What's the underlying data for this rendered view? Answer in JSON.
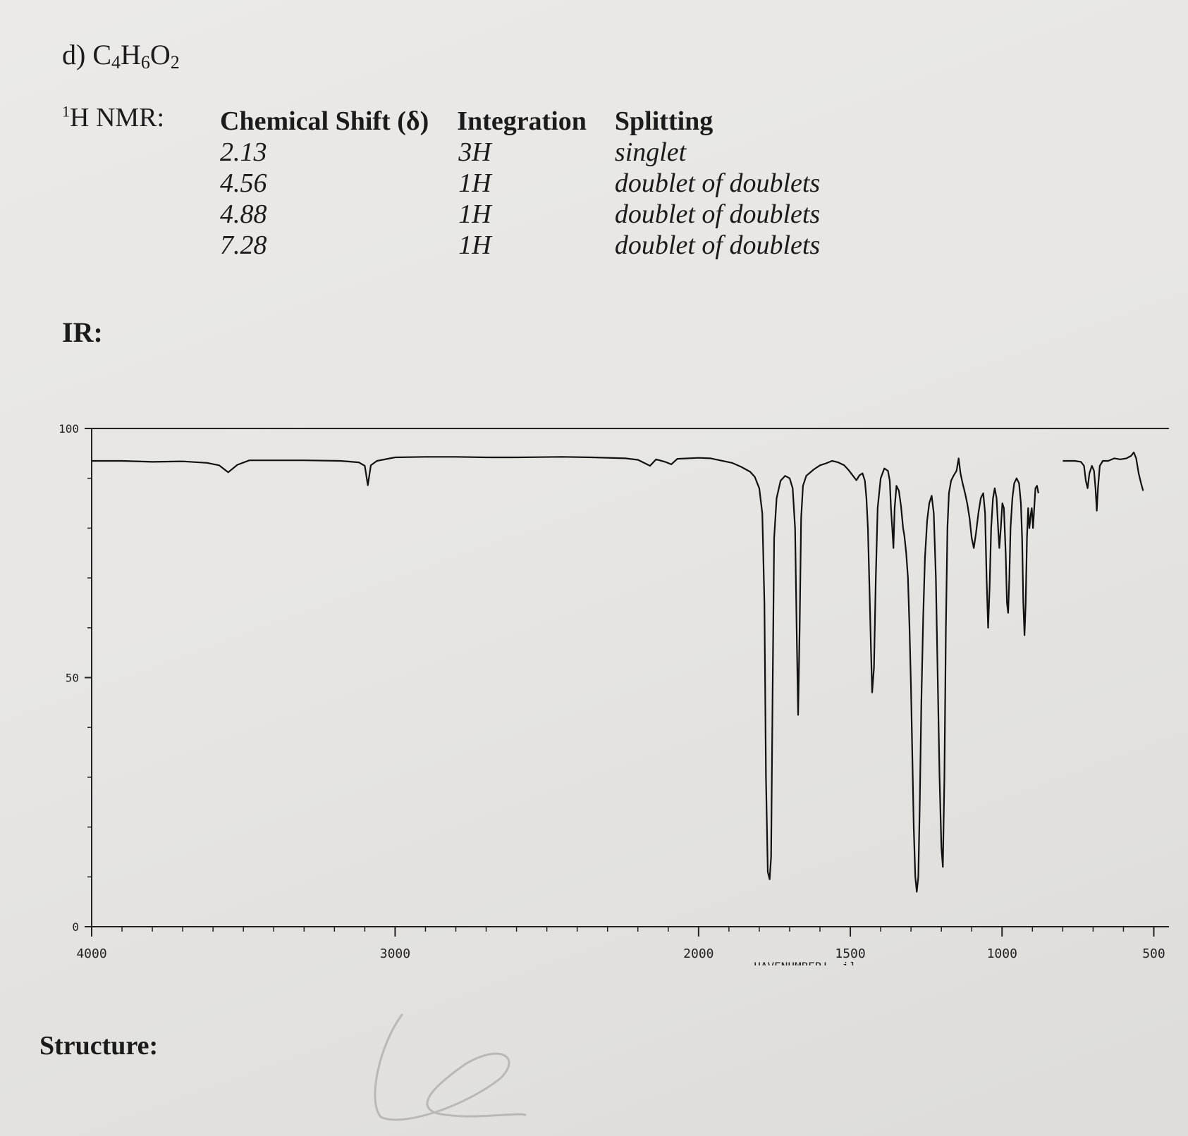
{
  "problem": {
    "label": "d)",
    "formula": [
      {
        "t": "C",
        "sub": false
      },
      {
        "t": "4",
        "sub": true
      },
      {
        "t": "H",
        "sub": false
      },
      {
        "t": "6",
        "sub": true
      },
      {
        "t": "O",
        "sub": false
      },
      {
        "t": "2",
        "sub": true
      }
    ]
  },
  "nmr": {
    "label_sup": "1",
    "label_text": "H NMR:",
    "headers": [
      "Chemical Shift (δ)",
      "Integration",
      "Splitting"
    ],
    "rows": [
      {
        "shift": "2.13",
        "integration": "3H",
        "splitting": "singlet"
      },
      {
        "shift": "4.56",
        "integration": "1H",
        "splitting": "doublet of doublets"
      },
      {
        "shift": "4.88",
        "integration": "1H",
        "splitting": "doublet of doublets"
      },
      {
        "shift": "7.28",
        "integration": "1H",
        "splitting": "doublet of doublets"
      }
    ]
  },
  "ir_label": "IR:",
  "structure_label": "Structure:",
  "chart_data": {
    "type": "line",
    "title": "",
    "xlabel": "HAVENUMBER! -i]",
    "ylabel": "",
    "xlim": [
      4000,
      450
    ],
    "ylim": [
      0,
      100
    ],
    "x_ticks": [
      4000,
      3000,
      2000,
      1500,
      1000,
      500
    ],
    "x_tick_labels": [
      "4000",
      "3000",
      "2000",
      "1500",
      "1000",
      "500"
    ],
    "y_ticks": [
      0,
      50,
      100
    ],
    "y_tick_labels": [
      "0",
      "50",
      "100"
    ],
    "grid": false,
    "series": [
      {
        "points": [
          [
            4000,
            93.5
          ],
          [
            3900,
            93.5
          ],
          [
            3800,
            93.3
          ],
          [
            3700,
            93.4
          ],
          [
            3620,
            93.1
          ],
          [
            3580,
            92.6
          ],
          [
            3550,
            91.2
          ],
          [
            3520,
            92.7
          ],
          [
            3480,
            93.6
          ],
          [
            3300,
            93.6
          ],
          [
            3180,
            93.5
          ],
          [
            3120,
            93.2
          ],
          [
            3100,
            92.5
          ],
          [
            3090,
            88.6
          ],
          [
            3080,
            92.6
          ],
          [
            3060,
            93.5
          ],
          [
            3000,
            94.2
          ],
          [
            2900,
            94.3
          ],
          [
            2800,
            94.3
          ],
          [
            2700,
            94.2
          ],
          [
            2600,
            94.2
          ],
          [
            2450,
            94.3
          ],
          [
            2350,
            94.2
          ],
          [
            2240,
            94.0
          ],
          [
            2200,
            93.7
          ],
          [
            2160,
            92.5
          ],
          [
            2140,
            93.8
          ],
          [
            2110,
            93.3
          ],
          [
            2090,
            92.8
          ],
          [
            2070,
            93.9
          ],
          [
            2000,
            94.1
          ],
          [
            1960,
            94.0
          ],
          [
            1930,
            93.6
          ],
          [
            1890,
            93.1
          ],
          [
            1860,
            92.3
          ],
          [
            1830,
            91.3
          ],
          [
            1815,
            90.3
          ],
          [
            1800,
            88.0
          ],
          [
            1790,
            83.0
          ],
          [
            1783,
            65.0
          ],
          [
            1778,
            30.0
          ],
          [
            1772,
            11.0
          ],
          [
            1766,
            9.5
          ],
          [
            1761,
            14.0
          ],
          [
            1756,
            48.0
          ],
          [
            1751,
            78.0
          ],
          [
            1743,
            86.0
          ],
          [
            1730,
            89.5
          ],
          [
            1715,
            90.5
          ],
          [
            1700,
            90.0
          ],
          [
            1690,
            88.0
          ],
          [
            1682,
            80.0
          ],
          [
            1677,
            60.0
          ],
          [
            1672,
            42.5
          ],
          [
            1667,
            60.0
          ],
          [
            1662,
            82.0
          ],
          [
            1656,
            88.5
          ],
          [
            1645,
            90.5
          ],
          [
            1620,
            91.8
          ],
          [
            1600,
            92.6
          ],
          [
            1580,
            93.0
          ],
          [
            1560,
            93.5
          ],
          [
            1540,
            93.2
          ],
          [
            1520,
            92.6
          ],
          [
            1505,
            91.6
          ],
          [
            1490,
            90.4
          ],
          [
            1480,
            89.6
          ],
          [
            1470,
            90.6
          ],
          [
            1460,
            91.0
          ],
          [
            1452,
            89.5
          ],
          [
            1447,
            86.0
          ],
          [
            1442,
            80.0
          ],
          [
            1437,
            68.0
          ],
          [
            1432,
            56.0
          ],
          [
            1428,
            47.0
          ],
          [
            1422,
            52.0
          ],
          [
            1416,
            70.0
          ],
          [
            1410,
            84.0
          ],
          [
            1400,
            90.0
          ],
          [
            1388,
            92.0
          ],
          [
            1376,
            91.5
          ],
          [
            1370,
            89.5
          ],
          [
            1366,
            84.0
          ],
          [
            1362,
            80.0
          ],
          [
            1358,
            76.0
          ],
          [
            1354,
            84.0
          ],
          [
            1348,
            88.5
          ],
          [
            1340,
            87.5
          ],
          [
            1333,
            84.5
          ],
          [
            1326,
            80.0
          ],
          [
            1322,
            78.5
          ],
          [
            1316,
            75.0
          ],
          [
            1310,
            70.0
          ],
          [
            1305,
            60.0
          ],
          [
            1300,
            48.0
          ],
          [
            1296,
            35.0
          ],
          [
            1291,
            20.0
          ],
          [
            1286,
            10.0
          ],
          [
            1281,
            7.0
          ],
          [
            1276,
            10.0
          ],
          [
            1271,
            25.0
          ],
          [
            1266,
            45.0
          ],
          [
            1260,
            62.0
          ],
          [
            1254,
            74.0
          ],
          [
            1247,
            81.5
          ],
          [
            1240,
            85.0
          ],
          [
            1232,
            86.5
          ],
          [
            1225,
            83.0
          ],
          [
            1218,
            70.0
          ],
          [
            1212,
            50.0
          ],
          [
            1206,
            30.0
          ],
          [
            1200,
            16.0
          ],
          [
            1195,
            12.0
          ],
          [
            1190,
            30.0
          ],
          [
            1185,
            60.0
          ],
          [
            1180,
            80.0
          ],
          [
            1175,
            87.0
          ],
          [
            1168,
            89.5
          ],
          [
            1160,
            90.5
          ],
          [
            1150,
            91.5
          ],
          [
            1143,
            94.0
          ],
          [
            1137,
            91.0
          ],
          [
            1130,
            89.0
          ],
          [
            1122,
            87.0
          ],
          [
            1115,
            85.0
          ],
          [
            1107,
            82.0
          ],
          [
            1100,
            78.0
          ],
          [
            1093,
            76.0
          ],
          [
            1086,
            79.0
          ],
          [
            1078,
            83.0
          ],
          [
            1070,
            86.0
          ],
          [
            1062,
            87.0
          ],
          [
            1056,
            83.0
          ],
          [
            1051,
            70.0
          ],
          [
            1046,
            60.0
          ],
          [
            1041,
            68.0
          ],
          [
            1036,
            80.0
          ],
          [
            1030,
            86.0
          ],
          [
            1024,
            88.0
          ],
          [
            1018,
            86.0
          ],
          [
            1013,
            80.0
          ],
          [
            1009,
            76.0
          ],
          [
            1004,
            80.0
          ],
          [
            999,
            85.0
          ],
          [
            994,
            84.0
          ],
          [
            988,
            75.0
          ],
          [
            984,
            65.0
          ],
          [
            980,
            63.0
          ],
          [
            976,
            70.0
          ],
          [
            972,
            80.0
          ],
          [
            966,
            86.0
          ],
          [
            960,
            89.0
          ],
          [
            952,
            90.0
          ],
          [
            944,
            89.0
          ],
          [
            938,
            85.0
          ],
          [
            934,
            78.0
          ],
          [
            930,
            65.0
          ],
          [
            926,
            58.5
          ],
          [
            922,
            65.0
          ],
          [
            918,
            78.0
          ],
          [
            914,
            84.0
          ],
          [
            910,
            80.0
          ],
          [
            906,
            82.5
          ],
          [
            902,
            84.0
          ],
          [
            898,
            80.0
          ],
          [
            894,
            84.0
          ],
          [
            890,
            88.0
          ],
          [
            885,
            88.5
          ],
          [
            880,
            87.0
          ]
        ]
      },
      {
        "points": [
          [
            800,
            93.5
          ],
          [
            760,
            93.5
          ],
          [
            740,
            93.3
          ],
          [
            730,
            92.5
          ],
          [
            724,
            89.5
          ],
          [
            718,
            88.0
          ],
          [
            712,
            91.0
          ],
          [
            704,
            92.5
          ],
          [
            697,
            91.5
          ],
          [
            692,
            88.0
          ],
          [
            688,
            83.5
          ],
          [
            684,
            88.0
          ],
          [
            678,
            92.5
          ],
          [
            668,
            93.5
          ],
          [
            650,
            93.5
          ],
          [
            630,
            94.0
          ],
          [
            610,
            93.8
          ],
          [
            590,
            94.0
          ],
          [
            575,
            94.5
          ],
          [
            566,
            95.2
          ],
          [
            558,
            94.0
          ],
          [
            550,
            91.0
          ],
          [
            542,
            89.0
          ],
          [
            535,
            87.5
          ]
        ]
      }
    ]
  }
}
